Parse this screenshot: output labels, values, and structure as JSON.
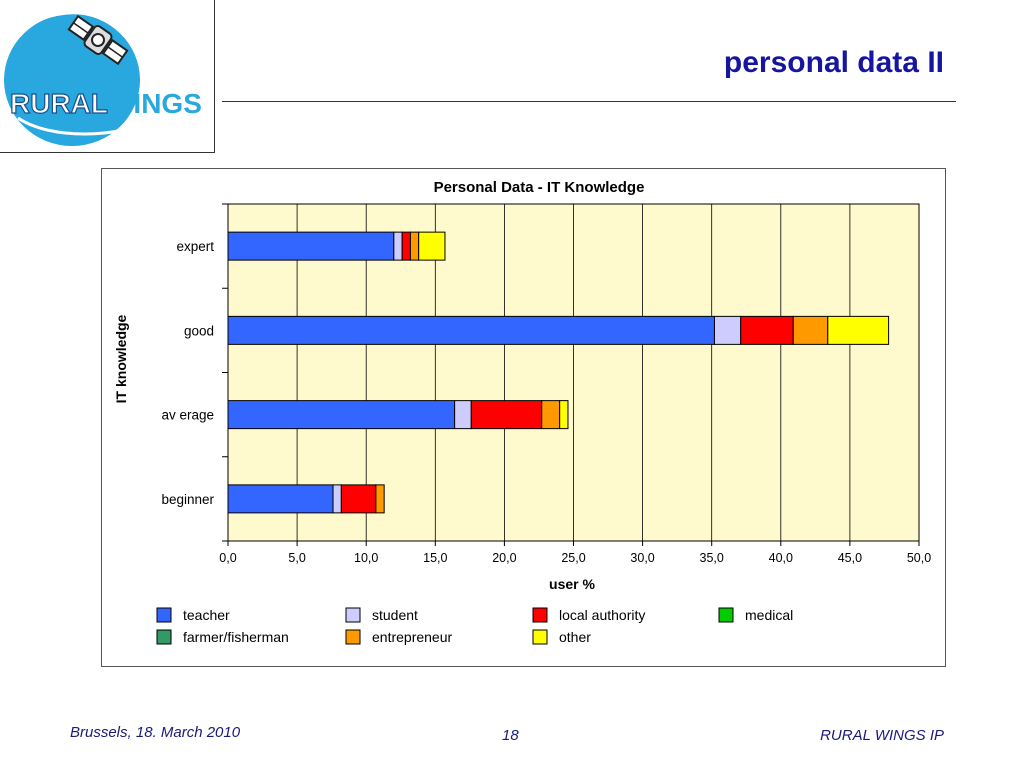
{
  "slide": {
    "title": "personal data II",
    "logo_text_a": "RURAL",
    "logo_text_b": "WINGS",
    "footer_left": "Brussels, 18. March 2010",
    "footer_page": "18",
    "footer_right": "RURAL WINGS IP"
  },
  "colors": {
    "title": "#1515a0",
    "plot_bg": "#fffacd",
    "logo_blue": "#29a8e0"
  },
  "chart_data": {
    "type": "bar",
    "orientation": "horizontal",
    "stacked": true,
    "title": "Personal Data - IT Knowledge",
    "xlabel": "user %",
    "ylabel": "IT knowledge",
    "xlim": [
      0,
      50
    ],
    "xticks": [
      "0,0",
      "5,0",
      "10,0",
      "15,0",
      "20,0",
      "25,0",
      "30,0",
      "35,0",
      "40,0",
      "45,0",
      "50,0"
    ],
    "categories": [
      "expert",
      "good",
      "av erage",
      "beginner"
    ],
    "grid": true,
    "legend_position": "bottom",
    "series": [
      {
        "name": "teacher",
        "color": "#3366ff",
        "values": [
          12.0,
          35.2,
          16.4,
          7.6
        ]
      },
      {
        "name": "student",
        "color": "#ccccff",
        "values": [
          0.6,
          1.9,
          1.2,
          0.6
        ]
      },
      {
        "name": "local authority",
        "color": "#ff0000",
        "values": [
          0.6,
          3.8,
          5.1,
          2.5
        ]
      },
      {
        "name": "medical",
        "color": "#00cc00",
        "values": [
          0,
          0,
          0,
          0
        ]
      },
      {
        "name": "farmer/fisherman",
        "color": "#339966",
        "values": [
          0,
          0,
          0,
          0
        ]
      },
      {
        "name": "entrepreneur",
        "color": "#ff9900",
        "values": [
          0.6,
          2.5,
          1.3,
          0.6
        ]
      },
      {
        "name": "other",
        "color": "#ffff00",
        "values": [
          1.9,
          4.4,
          0.6,
          0
        ]
      }
    ],
    "legend_order": [
      "teacher",
      "student",
      "local authority",
      "medical",
      "farmer/fisherman",
      "entrepreneur",
      "other"
    ]
  }
}
